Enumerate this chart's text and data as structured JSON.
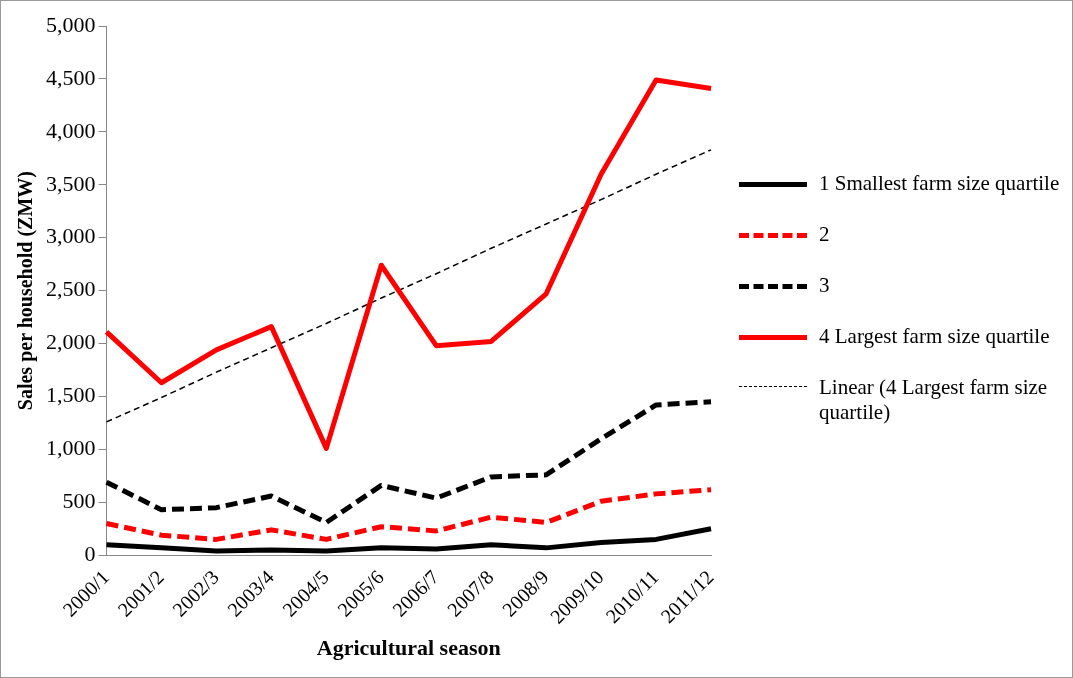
{
  "chart_data": {
    "type": "line",
    "xlabel": "Agricultural season",
    "ylabel": "Sales per household (ZMW)",
    "categories": [
      "2000/1",
      "2001/2",
      "2002/3",
      "2003/4",
      "2004/5",
      "2005/6",
      "2006/7",
      "2007/8",
      "2008/9",
      "2009/10",
      "2010/11",
      "2011/12"
    ],
    "series": [
      {
        "name": "1 Smallest farm size quartile",
        "color": "#000000",
        "line_style": "solid",
        "values": [
          100,
          70,
          40,
          50,
          40,
          70,
          60,
          100,
          70,
          120,
          150,
          250
        ]
      },
      {
        "name": "2",
        "color": "#ff0000",
        "line_style": "dashed",
        "values": [
          300,
          190,
          150,
          240,
          150,
          270,
          230,
          360,
          310,
          510,
          580,
          620
        ]
      },
      {
        "name": "3",
        "color": "#000000",
        "line_style": "dashed",
        "values": [
          690,
          430,
          450,
          560,
          310,
          660,
          540,
          740,
          760,
          1100,
          1420,
          1450
        ]
      },
      {
        "name": "4 Largest farm size quartile",
        "color": "#ff0000",
        "line_style": "solid",
        "values": [
          2110,
          1630,
          1940,
          2160,
          1010,
          2740,
          1980,
          2020,
          2470,
          3600,
          4490,
          4410
        ]
      },
      {
        "name": "Linear (4 Largest farm size quartile)",
        "color": "#000000",
        "line_style": "dotted",
        "values": [
          1260,
          1490,
          1730,
          1960,
          2190,
          2430,
          2660,
          2900,
          3130,
          3360,
          3600,
          3830
        ]
      }
    ],
    "ylim": [
      0,
      5000
    ],
    "yticks": [
      {
        "value": 0,
        "label": "0"
      },
      {
        "value": 500,
        "label": "500"
      },
      {
        "value": 1000,
        "label": "1,000"
      },
      {
        "value": 1500,
        "label": "1,500"
      },
      {
        "value": 2000,
        "label": "2,000"
      },
      {
        "value": 2500,
        "label": "2,500"
      },
      {
        "value": 3000,
        "label": "3,000"
      },
      {
        "value": 3500,
        "label": "3,500"
      },
      {
        "value": 4000,
        "label": "4,000"
      },
      {
        "value": 4500,
        "label": "4,500"
      },
      {
        "value": 5000,
        "label": "5,000"
      }
    ],
    "grid": false,
    "legend": "right",
    "marker": "none"
  }
}
